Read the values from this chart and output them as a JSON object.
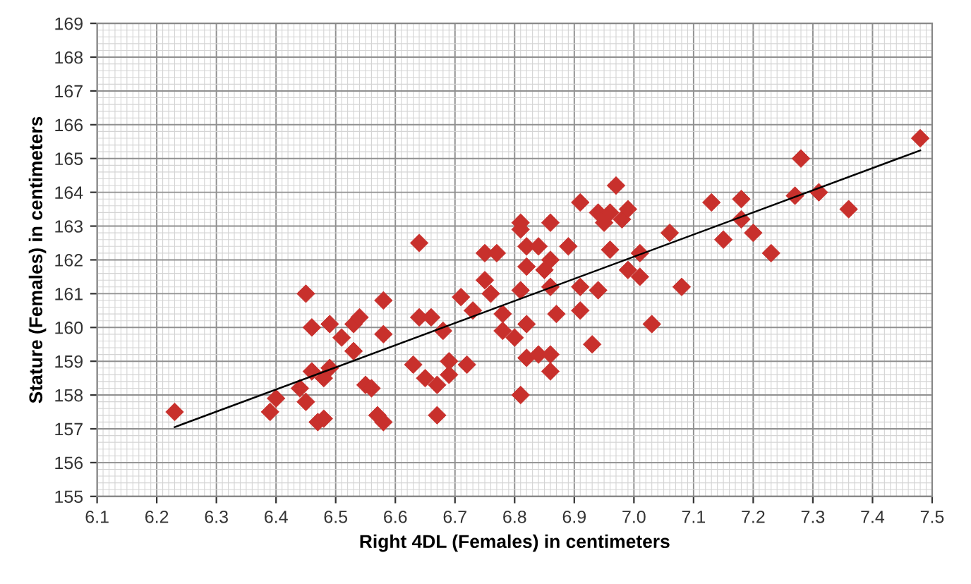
{
  "chart_data": {
    "type": "scatter",
    "xlabel": "Right 4DL (Females) in centimeters",
    "ylabel": "Stature (Females) in centimeters",
    "xlim": [
      6.1,
      7.5
    ],
    "xticks": [
      6.1,
      6.2,
      6.3,
      6.4,
      6.5,
      6.6,
      6.7,
      6.8,
      6.9,
      {
        "value": 7.0,
        "label": "7.0"
      },
      7.1,
      7.2,
      7.3,
      7.4,
      7.5
    ],
    "ylim": [
      155,
      169
    ],
    "yticks": [
      155,
      156,
      157,
      158,
      159,
      160,
      161,
      162,
      163,
      164,
      165,
      166,
      167,
      168,
      169
    ],
    "grid": true,
    "legend": false,
    "series": [
      {
        "color": "#c8302c",
        "marker": "diamond",
        "x": [
          6.23,
          6.4,
          6.39,
          6.45,
          6.46,
          6.49,
          6.51,
          6.46,
          6.49,
          6.44,
          6.48,
          6.45,
          6.47,
          6.48,
          6.53,
          6.53,
          6.54,
          6.58,
          6.58,
          6.55,
          6.56,
          6.57,
          6.58,
          6.64,
          6.64,
          6.66,
          6.68,
          6.63,
          6.65,
          6.67,
          6.67,
          6.69,
          6.69,
          6.72,
          6.71,
          6.73,
          6.75,
          6.75,
          6.77,
          6.76,
          6.78,
          6.78,
          6.8,
          6.81,
          6.81,
          6.86,
          6.82,
          6.84,
          6.89,
          6.82,
          6.86,
          6.85,
          6.86,
          6.81,
          6.87,
          6.82,
          6.82,
          6.84,
          6.86,
          6.86,
          6.81,
          6.97,
          6.91,
          6.94,
          6.96,
          6.95,
          6.98,
          6.99,
          6.96,
          7.01,
          7.06,
          6.99,
          7.01,
          6.91,
          6.94,
          7.08,
          6.91,
          7.03,
          6.93,
          7.13,
          7.18,
          7.18,
          7.2,
          7.15,
          7.23,
          7.28,
          7.27,
          7.31,
          7.36,
          7.48
        ],
        "values": [
          157.5,
          157.9,
          157.5,
          161.0,
          160.0,
          160.1,
          159.7,
          158.7,
          158.8,
          158.2,
          158.5,
          157.8,
          157.2,
          157.3,
          159.3,
          160.1,
          160.3,
          160.8,
          159.8,
          158.3,
          158.2,
          157.4,
          157.2,
          162.5,
          160.3,
          160.3,
          159.9,
          158.9,
          158.5,
          158.3,
          157.4,
          159.0,
          158.6,
          158.9,
          160.9,
          160.5,
          161.4,
          162.2,
          162.2,
          161.0,
          160.4,
          159.9,
          159.7,
          163.1,
          162.9,
          163.1,
          162.4,
          162.4,
          162.4,
          161.8,
          162.0,
          161.7,
          161.2,
          161.1,
          160.4,
          160.1,
          159.1,
          159.2,
          159.2,
          158.7,
          158.0,
          164.2,
          163.7,
          163.4,
          163.4,
          163.1,
          163.2,
          163.5,
          162.3,
          162.2,
          162.8,
          161.7,
          161.5,
          161.2,
          161.1,
          161.2,
          160.5,
          160.1,
          159.5,
          163.7,
          163.8,
          163.2,
          162.8,
          162.6,
          162.2,
          165.0,
          163.9,
          164.0,
          163.5,
          165.6
        ]
      },
      {
        "type": "line",
        "color": "#000000",
        "marker": "none",
        "line_style": "solid",
        "x": [
          6.23,
          7.48
        ],
        "values": [
          157.05,
          165.24
        ]
      }
    ]
  }
}
